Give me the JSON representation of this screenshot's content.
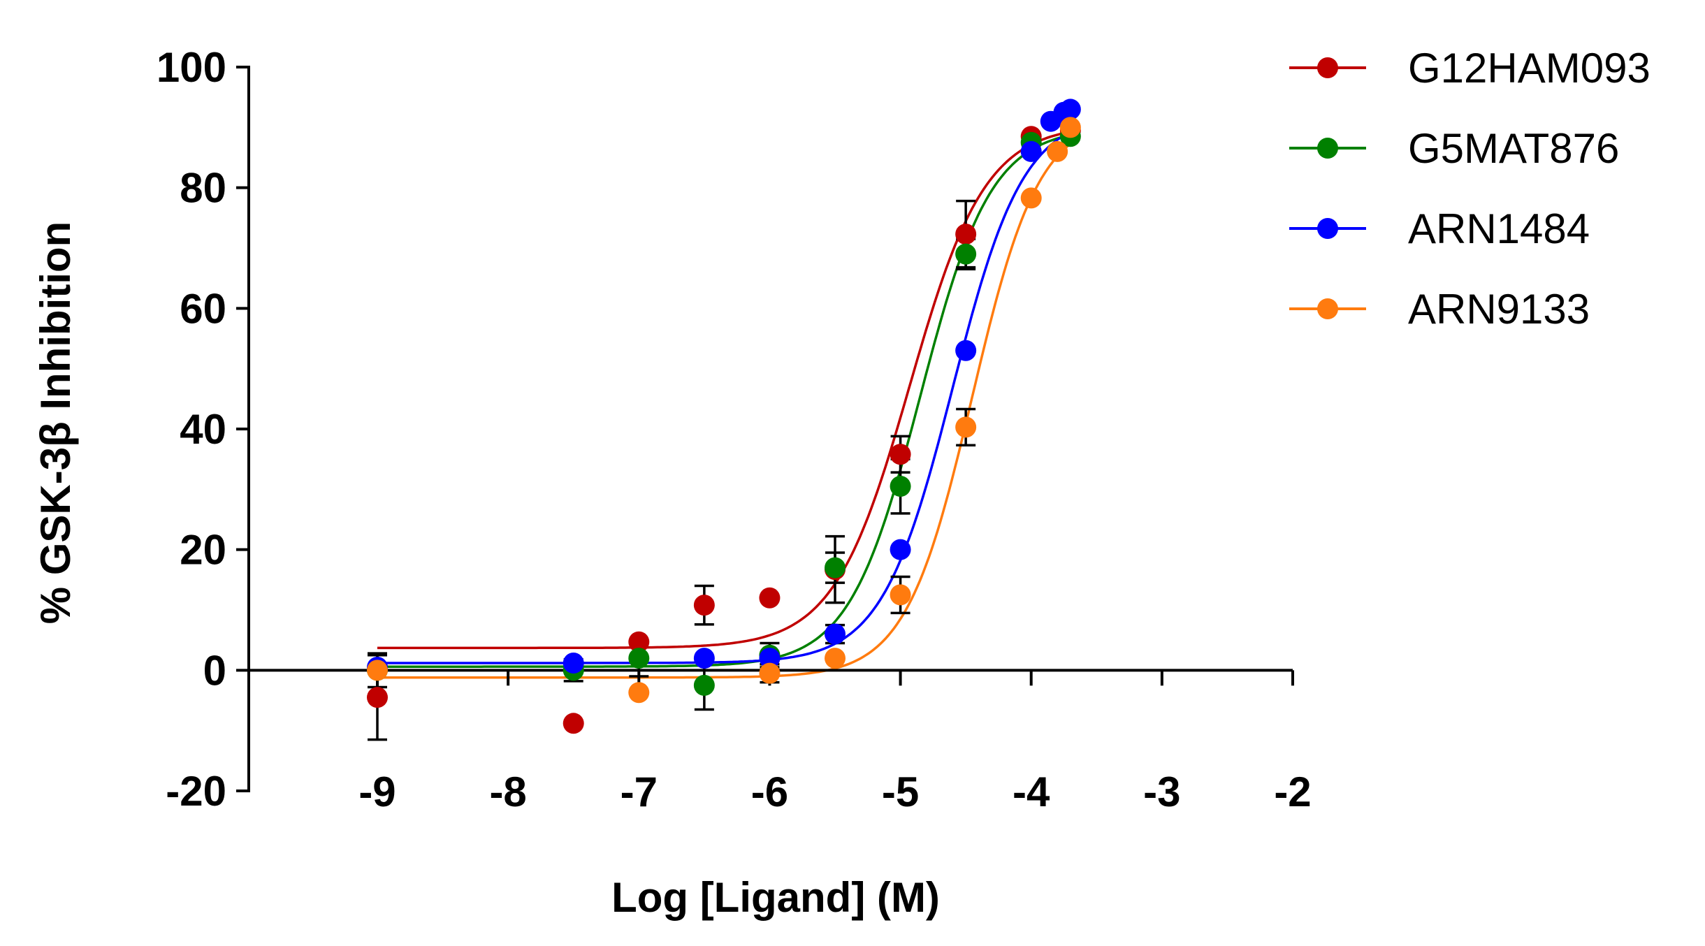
{
  "chart_data": {
    "type": "scatter",
    "title": "",
    "xlabel": "Log [Ligand] (M)",
    "ylabel": "% GSK-3β Inhibition",
    "xlim": [
      -9,
      -2
    ],
    "ylim": [
      -20,
      100
    ],
    "x_ticks": [
      -9,
      -8,
      -7,
      -6,
      -5,
      -4,
      -3,
      -2
    ],
    "y_ticks": [
      -20,
      0,
      20,
      40,
      60,
      80,
      100
    ],
    "x_tick_labels": [
      "-9",
      "-8",
      "-7",
      "-6",
      "-5",
      "-4",
      "-3",
      "-2"
    ],
    "y_tick_labels": [
      "-20",
      "0",
      "20",
      "40",
      "60",
      "80",
      "100"
    ],
    "grid": false,
    "legend_position": "top-right",
    "series": [
      {
        "name": "G12HAM093",
        "color": "#c00000",
        "fit": {
          "bottom": 3.7,
          "top": 90.5,
          "logec50": -4.93,
          "hill": 1.5
        },
        "points": [
          {
            "x": -9.0,
            "y": -4.5,
            "err": 7.0
          },
          {
            "x": -7.5,
            "y": -8.8,
            "err": 0
          },
          {
            "x": -7.0,
            "y": 4.7,
            "err": 0
          },
          {
            "x": -6.5,
            "y": 10.8,
            "err": 3.2
          },
          {
            "x": -6.0,
            "y": 12.0,
            "err": 0
          },
          {
            "x": -5.5,
            "y": 16.7,
            "err": 5.5
          },
          {
            "x": -5.0,
            "y": 35.8,
            "err": 3.0
          },
          {
            "x": -4.5,
            "y": 72.3,
            "err": 5.5
          },
          {
            "x": -4.0,
            "y": 88.5,
            "err": 0
          },
          {
            "x": -3.7,
            "y": 89.5,
            "err": 0
          }
        ]
      },
      {
        "name": "G5MAT876",
        "color": "#008000",
        "fit": {
          "bottom": 0.6,
          "top": 90.0,
          "logec50": -4.85,
          "hill": 1.6
        },
        "points": [
          {
            "x": -9.0,
            "y": 0.0,
            "err": 2.8
          },
          {
            "x": -7.5,
            "y": 0.0,
            "err": 1.8
          },
          {
            "x": -7.0,
            "y": 2.0,
            "err": 3.0
          },
          {
            "x": -6.5,
            "y": -2.5,
            "err": 4.0
          },
          {
            "x": -6.0,
            "y": 2.5,
            "err": 2.0
          },
          {
            "x": -5.5,
            "y": 17.0,
            "err": 2.5
          },
          {
            "x": -5.0,
            "y": 30.5,
            "err": 4.5
          },
          {
            "x": -4.5,
            "y": 69.0,
            "err": 2.5
          },
          {
            "x": -4.0,
            "y": 87.5,
            "err": 0
          },
          {
            "x": -3.7,
            "y": 88.5,
            "err": 0
          }
        ]
      },
      {
        "name": "ARN1484",
        "color": "#0000ff",
        "fit": {
          "bottom": 1.2,
          "top": 92.5,
          "logec50": -4.6,
          "hill": 1.6
        },
        "points": [
          {
            "x": -9.0,
            "y": 0.5,
            "err": 0
          },
          {
            "x": -7.5,
            "y": 1.2,
            "err": 0
          },
          {
            "x": -6.5,
            "y": 2.0,
            "err": 0
          },
          {
            "x": -6.0,
            "y": 2.0,
            "err": 0
          },
          {
            "x": -5.5,
            "y": 6.0,
            "err": 1.5
          },
          {
            "x": -5.0,
            "y": 20.0,
            "err": 0
          },
          {
            "x": -4.5,
            "y": 53.0,
            "err": 0
          },
          {
            "x": -4.0,
            "y": 86.0,
            "err": 0
          },
          {
            "x": -3.85,
            "y": 91.0,
            "err": 0
          },
          {
            "x": -3.75,
            "y": 92.5,
            "err": 0
          },
          {
            "x": -3.7,
            "y": 93.0,
            "err": 0
          }
        ]
      },
      {
        "name": "ARN9133",
        "color": "#ff7b0f",
        "fit": {
          "bottom": -1.2,
          "top": 92.0,
          "logec50": -4.45,
          "hill": 1.7
        },
        "points": [
          {
            "x": -9.0,
            "y": 0.0,
            "err": 0
          },
          {
            "x": -7.0,
            "y": -3.7,
            "err": 0
          },
          {
            "x": -6.0,
            "y": -0.5,
            "err": 1.5
          },
          {
            "x": -5.5,
            "y": 2.0,
            "err": 0
          },
          {
            "x": -5.0,
            "y": 12.5,
            "err": 3.0
          },
          {
            "x": -4.5,
            "y": 40.3,
            "err": 3.0
          },
          {
            "x": -4.0,
            "y": 78.3,
            "err": 0
          },
          {
            "x": -3.8,
            "y": 86.0,
            "err": 0
          },
          {
            "x": -3.7,
            "y": 90.0,
            "err": 0
          }
        ]
      }
    ]
  }
}
